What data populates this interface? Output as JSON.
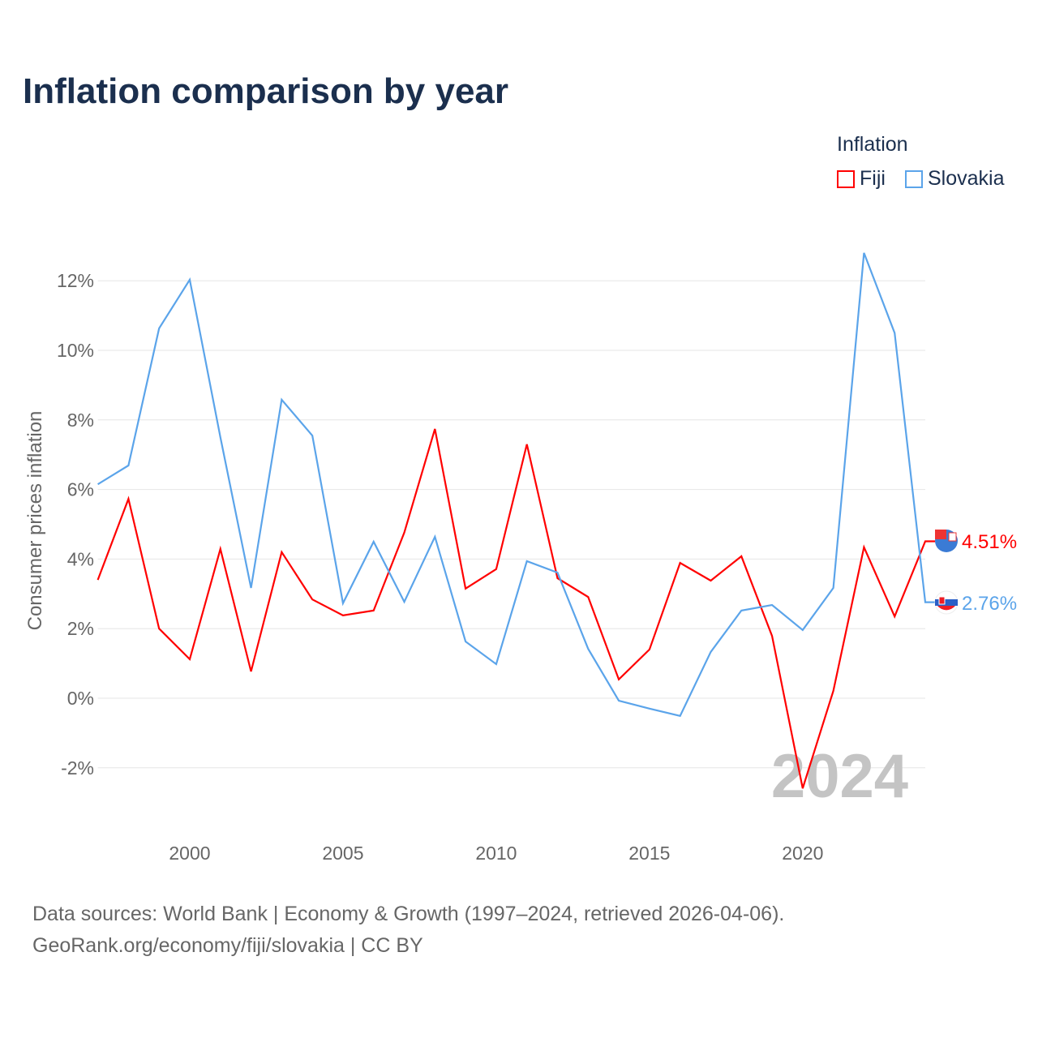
{
  "title": "Inflation comparison by year",
  "legend": {
    "title": "Inflation",
    "items": [
      {
        "label": "Fiji",
        "color": "#ff0000"
      },
      {
        "label": "Slovakia",
        "color": "#5ba4ea"
      }
    ]
  },
  "source": {
    "line1": "Data sources: World Bank | Economy & Growth (1997–2024, retrieved 2026-04-06).",
    "line2": "GeoRank.org/economy/fiji/slovakia | CC BY"
  },
  "chart_data": {
    "type": "line",
    "title": "Inflation comparison by year",
    "xlabel": "",
    "ylabel": "Consumer prices inflation",
    "x": [
      1997,
      1998,
      1999,
      2000,
      2001,
      2002,
      2003,
      2004,
      2005,
      2006,
      2007,
      2008,
      2009,
      2010,
      2011,
      2012,
      2013,
      2014,
      2015,
      2016,
      2017,
      2018,
      2019,
      2020,
      2021,
      2022,
      2023,
      2024
    ],
    "xlim": [
      1997,
      2024
    ],
    "ylim": [
      -3.2,
      13.5
    ],
    "xticks": [
      2000,
      2005,
      2010,
      2015,
      2020
    ],
    "yticks": [
      -2,
      0,
      2,
      4,
      6,
      8,
      10,
      12
    ],
    "ytick_labels": [
      "-2%",
      "0%",
      "2%",
      "4%",
      "6%",
      "8%",
      "10%",
      "12%"
    ],
    "grid": true,
    "watermark_year": "2024",
    "series": [
      {
        "name": "Fiji",
        "color": "#ff0000",
        "end_label": "4.51%",
        "values": [
          3.4,
          5.73,
          2.0,
          1.12,
          4.29,
          0.77,
          4.2,
          2.84,
          2.38,
          2.52,
          4.76,
          7.74,
          3.15,
          3.71,
          7.3,
          3.45,
          2.91,
          0.54,
          1.4,
          3.89,
          3.38,
          4.08,
          1.79,
          -2.59,
          0.21,
          4.34,
          2.35,
          4.51
        ]
      },
      {
        "name": "Slovakia",
        "color": "#5ba4ea",
        "end_label": "2.76%",
        "values": [
          6.15,
          6.69,
          10.63,
          12.03,
          7.5,
          3.17,
          8.58,
          7.55,
          2.73,
          4.5,
          2.77,
          4.64,
          1.63,
          0.98,
          3.94,
          3.61,
          1.42,
          -0.07,
          -0.3,
          -0.51,
          1.33,
          2.52,
          2.68,
          1.96,
          3.17,
          12.8,
          10.5,
          2.76
        ]
      }
    ]
  }
}
